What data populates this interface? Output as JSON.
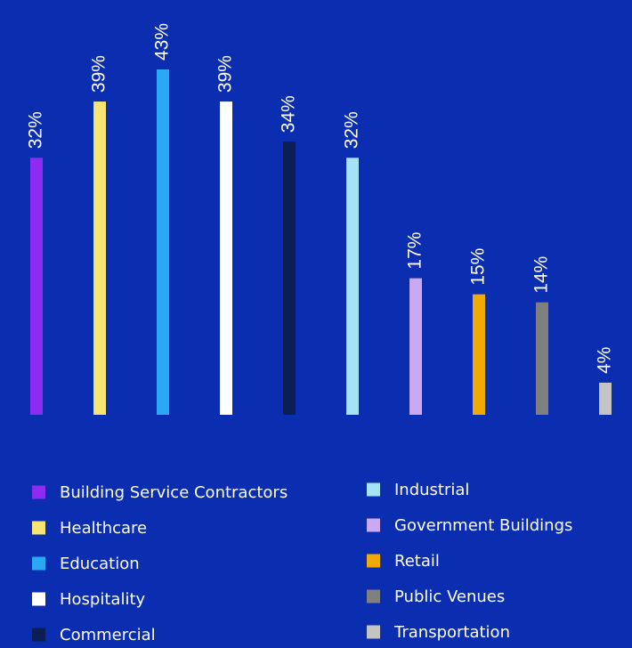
{
  "chart_data": {
    "type": "bar",
    "categories": [
      "Building Service Contractors",
      "Healthcare",
      "Education",
      "Hospitality",
      "Commercial",
      "Industrial",
      "Government Buildings",
      "Retail",
      "Public Venues",
      "Transportation"
    ],
    "values": [
      32,
      39,
      43,
      39,
      34,
      32,
      17,
      15,
      14,
      4
    ],
    "value_labels": [
      "32%",
      "39%",
      "43%",
      "39%",
      "34%",
      "32%",
      "17%",
      "15%",
      "14%",
      "4%"
    ],
    "colors": [
      "#8b2cf0",
      "#f6e572",
      "#2aa8f4",
      "#ffffff",
      "#0c1f55",
      "#a6e2f6",
      "#cba8f4",
      "#f0aa00",
      "#808080",
      "#c4c4c4"
    ]
  }
}
